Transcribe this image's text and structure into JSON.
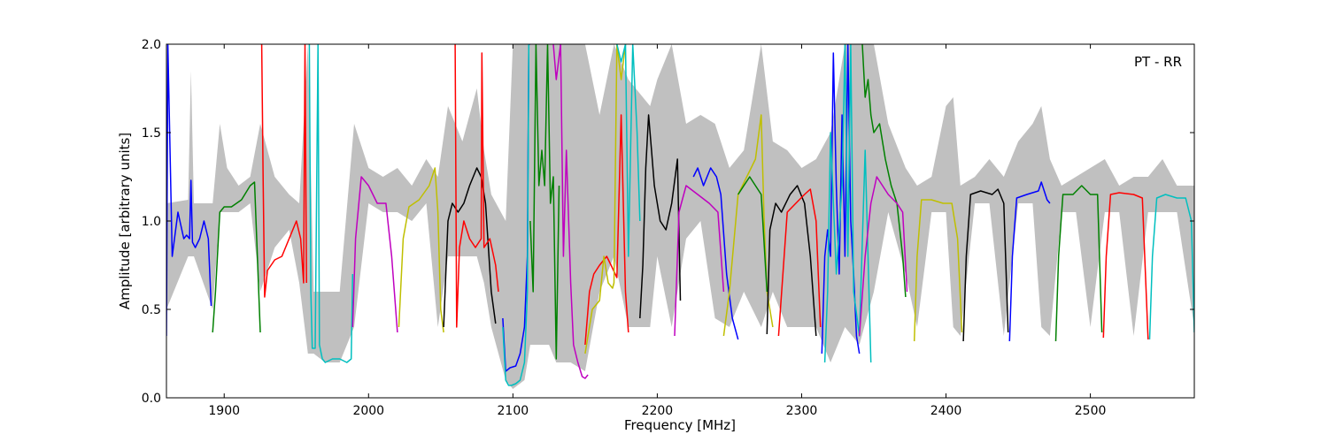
{
  "chart_data": {
    "type": "line",
    "title": "",
    "annotation": "PT - RR",
    "xlabel": "Frequency [MHz]",
    "ylabel": "Amplitude [arbitrary units]",
    "xlim": [
      1860,
      2572
    ],
    "ylim": [
      0.0,
      2.0
    ],
    "xticks": [
      1900,
      2000,
      2100,
      2200,
      2300,
      2400,
      2500
    ],
    "xtick_labels": [
      "1900",
      "2000",
      "2100",
      "2200",
      "2300",
      "2400",
      "2500"
    ],
    "yticks": [
      0.0,
      0.5,
      1.0,
      1.5,
      2.0
    ],
    "ytick_labels": [
      "0.0",
      "0.5",
      "1.0",
      "1.5",
      "2.0"
    ],
    "grid": false,
    "band_envelope": {
      "name": "spread",
      "color": "#c0c0c0",
      "x": [
        1860,
        1875,
        1877,
        1879,
        1892,
        1897,
        1902,
        1910,
        1918,
        1925,
        1935,
        1945,
        1952,
        1958,
        1962,
        1970,
        1980,
        1990,
        2000,
        2010,
        2020,
        2030,
        2040,
        2048,
        2055,
        2065,
        2075,
        2080,
        2085,
        2095,
        2100,
        2108,
        2112,
        2125,
        2130,
        2140,
        2150,
        2160,
        2170,
        2180,
        2195,
        2200,
        2210,
        2220,
        2230,
        2240,
        2250,
        2260,
        2272,
        2280,
        2290,
        2300,
        2310,
        2320,
        2330,
        2340,
        2350,
        2360,
        2372,
        2380,
        2390,
        2400,
        2405,
        2410,
        2420,
        2430,
        2440,
        2450,
        2460,
        2466,
        2472,
        2480,
        2490,
        2500,
        2510,
        2520,
        2530,
        2540,
        2550,
        2560,
        2572
      ],
      "upper": [
        1.1,
        1.12,
        1.85,
        1.1,
        1.1,
        1.55,
        1.3,
        1.2,
        1.25,
        1.55,
        1.25,
        1.15,
        1.1,
        2.0,
        0.6,
        0.6,
        0.6,
        1.55,
        1.3,
        1.25,
        1.3,
        1.2,
        1.35,
        1.25,
        1.65,
        1.45,
        1.75,
        1.4,
        1.15,
        1.0,
        2.0,
        2.0,
        2.0,
        2.0,
        2.0,
        2.0,
        2.0,
        1.6,
        2.0,
        1.8,
        1.65,
        1.8,
        2.0,
        1.55,
        1.6,
        1.55,
        1.3,
        1.4,
        2.0,
        1.45,
        1.4,
        1.3,
        1.35,
        1.5,
        2.0,
        2.0,
        2.0,
        1.55,
        1.3,
        1.2,
        1.25,
        1.65,
        1.7,
        1.2,
        1.25,
        1.35,
        1.25,
        1.45,
        1.55,
        1.65,
        1.35,
        1.2,
        1.25,
        1.3,
        1.35,
        1.2,
        1.25,
        1.25,
        1.35,
        1.2,
        1.2
      ],
      "lower": [
        0.5,
        0.8,
        0.8,
        0.8,
        0.5,
        1.05,
        1.05,
        1.05,
        1.1,
        0.6,
        0.85,
        0.95,
        0.65,
        0.25,
        0.25,
        0.2,
        0.2,
        0.4,
        1.1,
        1.05,
        1.05,
        1.0,
        1.1,
        0.4,
        0.8,
        0.8,
        0.8,
        0.65,
        0.4,
        0.1,
        0.05,
        0.1,
        0.3,
        0.3,
        0.2,
        0.2,
        0.15,
        0.6,
        0.8,
        0.4,
        0.4,
        0.8,
        0.4,
        0.9,
        1.0,
        0.45,
        0.4,
        0.6,
        0.4,
        0.6,
        0.4,
        0.4,
        0.4,
        0.2,
        0.4,
        0.3,
        0.6,
        1.05,
        0.7,
        0.4,
        1.05,
        1.05,
        0.4,
        0.35,
        1.1,
        1.1,
        0.35,
        1.1,
        1.1,
        0.4,
        0.35,
        1.05,
        1.05,
        0.4,
        1.05,
        1.05,
        0.35,
        1.05,
        1.05,
        1.05,
        0.4
      ]
    },
    "series": [
      {
        "color": "#0000ff",
        "x": [
          1860,
          1861,
          1864,
          1868,
          1872,
          1874,
          1876,
          1877,
          1878,
          1880,
          1883,
          1886,
          1889,
          1891
        ],
        "y": [
          0.35,
          2.0,
          0.8,
          1.05,
          0.9,
          0.92,
          0.9,
          1.23,
          0.88,
          0.85,
          0.9,
          1.0,
          0.9,
          0.52
        ]
      },
      {
        "color": "#008000",
        "x": [
          1892,
          1894,
          1897,
          1900,
          1905,
          1912,
          1918,
          1921,
          1923,
          1925
        ],
        "y": [
          0.37,
          0.6,
          1.05,
          1.08,
          1.08,
          1.12,
          1.2,
          1.22,
          0.8,
          0.37
        ]
      },
      {
        "color": "#ff0000",
        "x": [
          1926,
          1927,
          1928,
          1930,
          1935,
          1940,
          1945,
          1950,
          1953,
          1955,
          1956,
          1957
        ],
        "y": [
          2.0,
          1.2,
          0.57,
          0.72,
          0.78,
          0.8,
          0.9,
          1.0,
          0.9,
          0.65,
          2.0,
          0.65
        ]
      },
      {
        "color": "#00bfbf",
        "x": [
          1959,
          1960,
          1961,
          1963,
          1965,
          1966,
          1968,
          1970,
          1975,
          1980,
          1985,
          1988,
          1989
        ],
        "y": [
          2.0,
          0.6,
          0.28,
          0.28,
          2.0,
          0.3,
          0.22,
          0.2,
          0.22,
          0.22,
          0.2,
          0.22,
          0.7
        ]
      },
      {
        "color": "#bf00bf",
        "x": [
          1989,
          1991,
          1995,
          2000,
          2006,
          2012,
          2016,
          2020
        ],
        "y": [
          0.4,
          0.9,
          1.25,
          1.2,
          1.1,
          1.1,
          0.8,
          0.37
        ]
      },
      {
        "color": "#bfbf00",
        "x": [
          2021,
          2024,
          2028,
          2035,
          2042,
          2046,
          2048,
          2050,
          2052
        ],
        "y": [
          0.4,
          0.9,
          1.08,
          1.12,
          1.2,
          1.3,
          1.05,
          0.5,
          0.37
        ]
      },
      {
        "color": "#000000",
        "x": [
          2052,
          2055,
          2058,
          2062,
          2066,
          2070,
          2075,
          2078,
          2081,
          2085,
          2088
        ],
        "y": [
          0.4,
          1.0,
          1.1,
          1.05,
          1.1,
          1.2,
          1.3,
          1.25,
          1.1,
          0.6,
          0.42
        ]
      },
      {
        "color": "#ff0000",
        "x": [
          2060,
          2061,
          2063,
          2066,
          2070,
          2074,
          2078,
          2078.5,
          2080,
          2084,
          2088,
          2090
        ],
        "y": [
          2.0,
          0.4,
          0.85,
          1.0,
          0.9,
          0.85,
          0.9,
          1.95,
          0.85,
          0.9,
          0.75,
          0.6
        ]
      },
      {
        "color": "#0000ff",
        "x": [
          2093,
          2095,
          2098,
          2102,
          2105,
          2108,
          2110,
          2111,
          2112
        ],
        "y": [
          0.45,
          0.15,
          0.17,
          0.18,
          0.25,
          0.4,
          0.8,
          2.0,
          2.0
        ]
      },
      {
        "color": "#00bfbf",
        "x": [
          2093,
          2095,
          2097,
          2099,
          2102,
          2105,
          2108,
          2110,
          2111
        ],
        "y": [
          0.4,
          0.1,
          0.07,
          0.07,
          0.08,
          0.1,
          0.2,
          0.6,
          2.0
        ]
      },
      {
        "color": "#008000",
        "x": [
          2112,
          2114,
          2116,
          2118,
          2120,
          2122,
          2124,
          2126,
          2128,
          2130,
          2132
        ],
        "y": [
          1.0,
          0.6,
          2.0,
          1.2,
          1.4,
          1.2,
          2.0,
          1.1,
          1.25,
          0.22,
          1.2
        ]
      },
      {
        "color": "#bf00bf",
        "x": [
          2128,
          2130,
          2133,
          2135,
          2137,
          2140,
          2142,
          2145,
          2148,
          2150,
          2152
        ],
        "y": [
          2.0,
          1.8,
          2.0,
          0.8,
          1.4,
          0.65,
          0.3,
          0.2,
          0.12,
          0.11,
          0.13
        ]
      },
      {
        "color": "#ff0000",
        "x": [
          2150,
          2153,
          2156,
          2160,
          2165,
          2168,
          2172,
          2175,
          2178,
          2180
        ],
        "y": [
          0.3,
          0.6,
          0.7,
          0.75,
          0.8,
          0.75,
          0.68,
          1.6,
          0.6,
          0.37
        ]
      },
      {
        "color": "#bfbf00",
        "x": [
          2150,
          2155,
          2160,
          2163,
          2166,
          2169,
          2170,
          2172,
          2175,
          2178
        ],
        "y": [
          0.25,
          0.5,
          0.55,
          0.8,
          0.65,
          0.62,
          0.65,
          2.0,
          1.8,
          2.0
        ]
      },
      {
        "color": "#00bfbf",
        "x": [
          2172,
          2175,
          2178,
          2180,
          2183,
          2186,
          2188
        ],
        "y": [
          2.0,
          1.9,
          2.0,
          0.8,
          2.0,
          1.5,
          1.0
        ]
      },
      {
        "color": "#000000",
        "x": [
          2188,
          2190,
          2192,
          2194,
          2196,
          2198,
          2202,
          2206,
          2210,
          2214,
          2216
        ],
        "y": [
          0.45,
          0.75,
          1.3,
          1.6,
          1.4,
          1.2,
          1.0,
          0.95,
          1.1,
          1.35,
          0.55
        ]
      },
      {
        "color": "#bf00bf",
        "x": [
          2212,
          2215,
          2220,
          2228,
          2236,
          2242,
          2246
        ],
        "y": [
          0.35,
          1.05,
          1.2,
          1.15,
          1.1,
          1.05,
          0.6
        ]
      },
      {
        "color": "#0000ff",
        "x": [
          2225,
          2228,
          2232,
          2237,
          2241,
          2244,
          2248,
          2252,
          2256
        ],
        "y": [
          1.25,
          1.3,
          1.2,
          1.3,
          1.25,
          1.15,
          0.7,
          0.45,
          0.33
        ]
      },
      {
        "color": "#bfbf00",
        "x": [
          2246,
          2250,
          2256,
          2262,
          2268,
          2272,
          2274,
          2276,
          2280
        ],
        "y": [
          0.35,
          0.6,
          1.15,
          1.25,
          1.35,
          1.6,
          1.0,
          0.6,
          0.4
        ]
      },
      {
        "color": "#008000",
        "x": [
          2256,
          2260,
          2264,
          2268,
          2272,
          2276
        ],
        "y": [
          1.15,
          1.2,
          1.25,
          1.2,
          1.15,
          0.6
        ]
      },
      {
        "color": "#000000",
        "x": [
          2276,
          2278,
          2282,
          2286,
          2292,
          2297,
          2302,
          2306,
          2310
        ],
        "y": [
          0.36,
          0.95,
          1.1,
          1.05,
          1.15,
          1.2,
          1.1,
          0.8,
          0.35
        ]
      },
      {
        "color": "#ff0000",
        "x": [
          2284,
          2290,
          2296,
          2302,
          2306,
          2310,
          2313
        ],
        "y": [
          0.35,
          1.05,
          1.1,
          1.15,
          1.18,
          1.0,
          0.4
        ]
      },
      {
        "color": "#0000ff",
        "x": [
          2314,
          2316,
          2318,
          2320,
          2322,
          2324,
          2326,
          2328,
          2330,
          2332,
          2334,
          2336,
          2338,
          2340
        ],
        "y": [
          0.25,
          0.8,
          0.95,
          0.8,
          1.95,
          1.2,
          0.7,
          1.6,
          0.8,
          2.0,
          1.0,
          0.7,
          0.35,
          0.25
        ]
      },
      {
        "color": "#00bfbf",
        "x": [
          2316,
          2318,
          2320,
          2324,
          2328,
          2330,
          2332,
          2334,
          2336,
          2340,
          2344,
          2348
        ],
        "y": [
          0.2,
          0.6,
          1.5,
          0.7,
          1.2,
          2.0,
          0.8,
          2.0,
          0.6,
          0.35,
          1.4,
          0.2
        ]
      },
      {
        "color": "#008000",
        "x": [
          2342,
          2344,
          2346,
          2348,
          2350,
          2354,
          2358,
          2362,
          2366,
          2370,
          2372
        ],
        "y": [
          2.0,
          1.7,
          1.8,
          1.6,
          1.5,
          1.55,
          1.35,
          1.2,
          1.1,
          0.8,
          0.57
        ]
      },
      {
        "color": "#bf00bf",
        "x": [
          2340,
          2344,
          2348,
          2352,
          2356,
          2360,
          2366,
          2370,
          2373
        ],
        "y": [
          0.35,
          0.8,
          1.1,
          1.25,
          1.2,
          1.15,
          1.1,
          1.05,
          0.6
        ]
      },
      {
        "color": "#bfbf00",
        "x": [
          2378,
          2380,
          2383,
          2390,
          2398,
          2404,
          2408,
          2411
        ],
        "y": [
          0.32,
          0.8,
          1.12,
          1.12,
          1.1,
          1.1,
          0.9,
          0.37
        ]
      },
      {
        "color": "#000000",
        "x": [
          2412,
          2414,
          2417,
          2424,
          2432,
          2436,
          2440,
          2443
        ],
        "y": [
          0.32,
          0.8,
          1.15,
          1.17,
          1.15,
          1.18,
          1.1,
          0.37
        ]
      },
      {
        "color": "#0000ff",
        "x": [
          2444,
          2446,
          2449,
          2456,
          2464,
          2466,
          2470,
          2472
        ],
        "y": [
          0.32,
          0.8,
          1.13,
          1.15,
          1.17,
          1.22,
          1.12,
          1.1
        ]
      },
      {
        "color": "#008000",
        "x": [
          2476,
          2478,
          2481,
          2488,
          2494,
          2500,
          2505,
          2508
        ],
        "y": [
          0.32,
          0.8,
          1.15,
          1.15,
          1.2,
          1.15,
          1.15,
          0.37
        ]
      },
      {
        "color": "#ff0000",
        "x": [
          2509,
          2511,
          2514,
          2520,
          2530,
          2536,
          2540
        ],
        "y": [
          0.34,
          0.8,
          1.15,
          1.16,
          1.15,
          1.13,
          0.33
        ]
      },
      {
        "color": "#00bfbf",
        "x": [
          2541,
          2543,
          2546,
          2552,
          2560,
          2566,
          2570,
          2572
        ],
        "y": [
          0.33,
          0.8,
          1.13,
          1.15,
          1.13,
          1.13,
          1.0,
          0.37
        ]
      }
    ]
  }
}
